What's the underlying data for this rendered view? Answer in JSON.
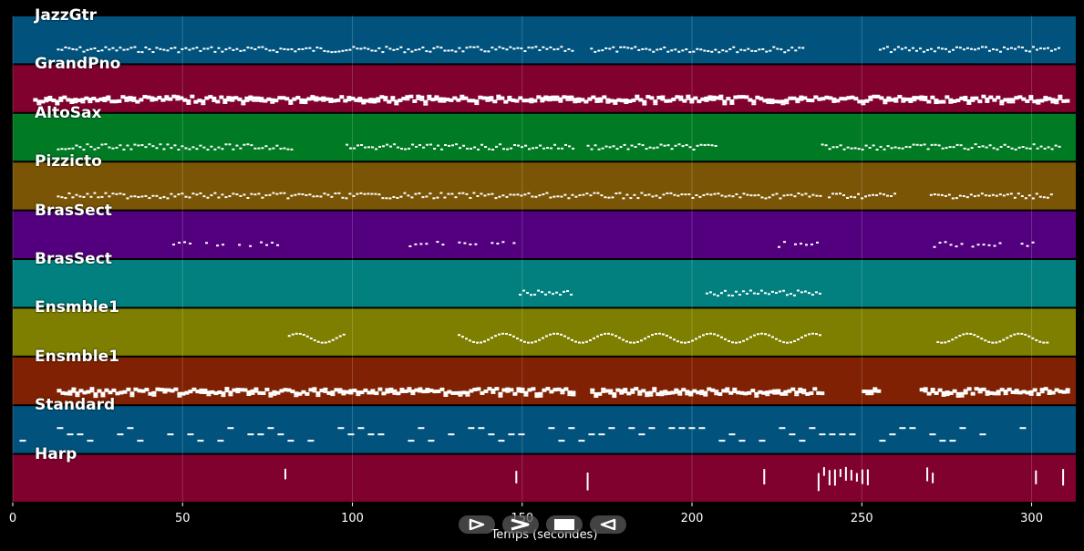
{
  "chart_data": {
    "type": "piano-roll",
    "xlabel": "Temps (secondes)",
    "xlim": [
      0,
      313
    ],
    "xticks": [
      0,
      50,
      100,
      150,
      200,
      250,
      300
    ],
    "tracks": [
      {
        "name": "JazzGtr",
        "color": "#01537d",
        "note_style": "thin",
        "segments": [
          [
            13,
            165
          ],
          [
            170,
            233
          ],
          [
            255,
            308
          ]
        ]
      },
      {
        "name": "GrandPno",
        "color": "#80002e",
        "note_style": "thick",
        "segments": [
          [
            6,
            310
          ]
        ]
      },
      {
        "name": "AltoSax",
        "color": "#017a24",
        "note_style": "thin",
        "segments": [
          [
            13,
            82
          ],
          [
            98,
            165
          ],
          [
            169,
            207
          ],
          [
            238,
            308
          ]
        ]
      },
      {
        "name": "Pizzicto",
        "color": "#7b5506",
        "note_style": "thin",
        "segments": [
          [
            13,
            238
          ],
          [
            240,
            260
          ],
          [
            270,
            306
          ]
        ]
      },
      {
        "name": "BrasSect",
        "color": "#52007d",
        "note_style": "sparse",
        "segments": [
          [
            47,
            80
          ],
          [
            115,
            148
          ],
          [
            222,
            238
          ],
          [
            271,
            303
          ]
        ]
      },
      {
        "name": "BrasSect",
        "color": "#01807f",
        "note_style": "thin",
        "segments": [
          [
            149,
            165
          ],
          [
            204,
            238
          ]
        ]
      },
      {
        "name": "Ensmble1",
        "color": "#7e7f00",
        "note_style": "wave",
        "segments": [
          [
            81,
            98
          ],
          [
            131,
            238
          ],
          [
            272,
            305
          ]
        ]
      },
      {
        "name": "Ensmble1",
        "color": "#7f2102",
        "note_style": "thick",
        "segments": [
          [
            13,
            165
          ],
          [
            170,
            238
          ],
          [
            250,
            255
          ],
          [
            267,
            310
          ]
        ]
      },
      {
        "name": "Standard",
        "color": "#01537d",
        "note_style": "drums",
        "segments": [
          [
            2,
            6
          ],
          [
            13,
            305
          ]
        ]
      },
      {
        "name": "Harp",
        "color": "#80002e",
        "note_style": "rare",
        "segments": [
          [
            80,
            81
          ],
          [
            148,
            149
          ],
          [
            169,
            170
          ],
          [
            221,
            222
          ],
          [
            237,
            252
          ],
          [
            269,
            271
          ],
          [
            301,
            302
          ],
          [
            309,
            310
          ]
        ]
      }
    ]
  },
  "playback": {
    "play_icon": "play-outline-icon",
    "forward_icon": "fast-forward-icon",
    "stop_icon": "stop-icon",
    "rewind_icon": "rewind-icon"
  }
}
